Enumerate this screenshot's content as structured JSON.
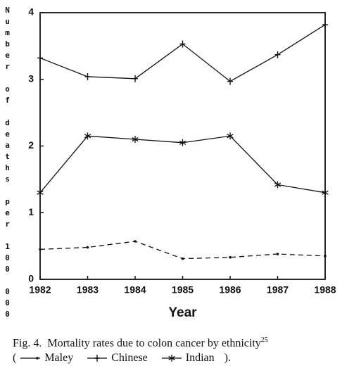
{
  "chart_data": {
    "type": "line",
    "y_label": "Number of deaths per 100 000",
    "x_label": "Year",
    "categories": [
      "1982",
      "1983",
      "1984",
      "1985",
      "1986",
      "1987",
      "1988"
    ],
    "series": [
      {
        "name": "Maley",
        "color": "#111111",
        "marker": "dot",
        "dashed": true,
        "values": [
          0.45,
          0.48,
          0.57,
          0.31,
          0.33,
          0.38,
          0.35
        ]
      },
      {
        "name": "Chinese",
        "color": "#111111",
        "marker": "plus",
        "dashed": false,
        "values": [
          3.32,
          3.04,
          3.01,
          3.53,
          2.97,
          3.37,
          3.82
        ]
      },
      {
        "name": "Indian",
        "color": "#111111",
        "marker": "star",
        "dashed": false,
        "values": [
          1.3,
          2.15,
          2.1,
          2.05,
          2.15,
          1.42,
          1.3
        ]
      }
    ],
    "ylim": [
      0,
      4
    ],
    "yticks": [
      0,
      1,
      2,
      3,
      4
    ],
    "caption": "Fig. 4.  Mortality rates due to colon cancer by ethnicity",
    "caption_ref": "25",
    "legend_open": "(",
    "legend_close": ")."
  }
}
